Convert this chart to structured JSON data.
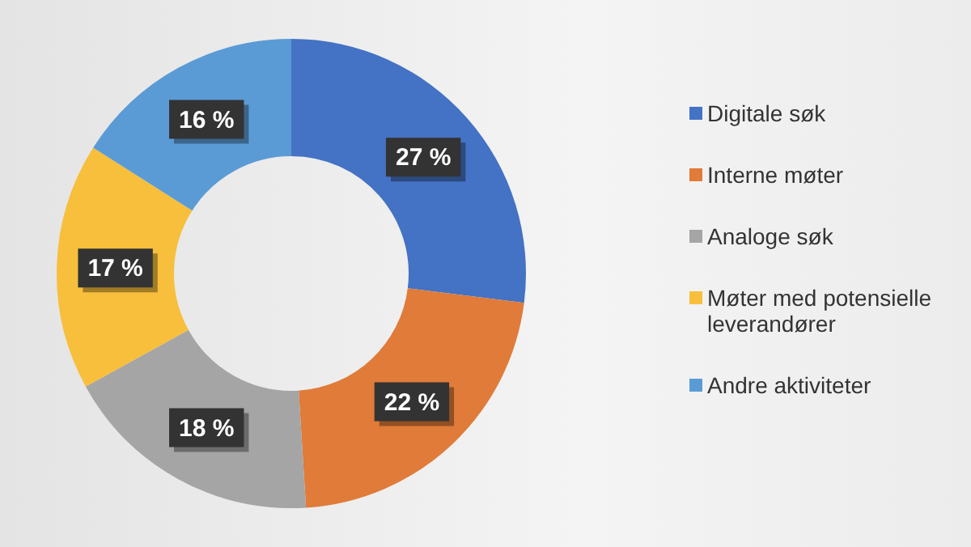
{
  "chart_data": {
    "type": "donut",
    "categories": [
      "Digitale søk",
      "Interne møter",
      "Analoge søk",
      "Møter med potensielle leverandører",
      "Andre aktiviteter"
    ],
    "values": [
      27,
      22,
      18,
      17,
      16
    ],
    "colors": [
      "#4472c4",
      "#e07b39",
      "#a5a5a5",
      "#f7bf3b",
      "#5b9bd5"
    ],
    "value_labels": [
      "27 %",
      "22 %",
      "18 %",
      "17 %",
      "16 %"
    ],
    "legend": "right"
  }
}
